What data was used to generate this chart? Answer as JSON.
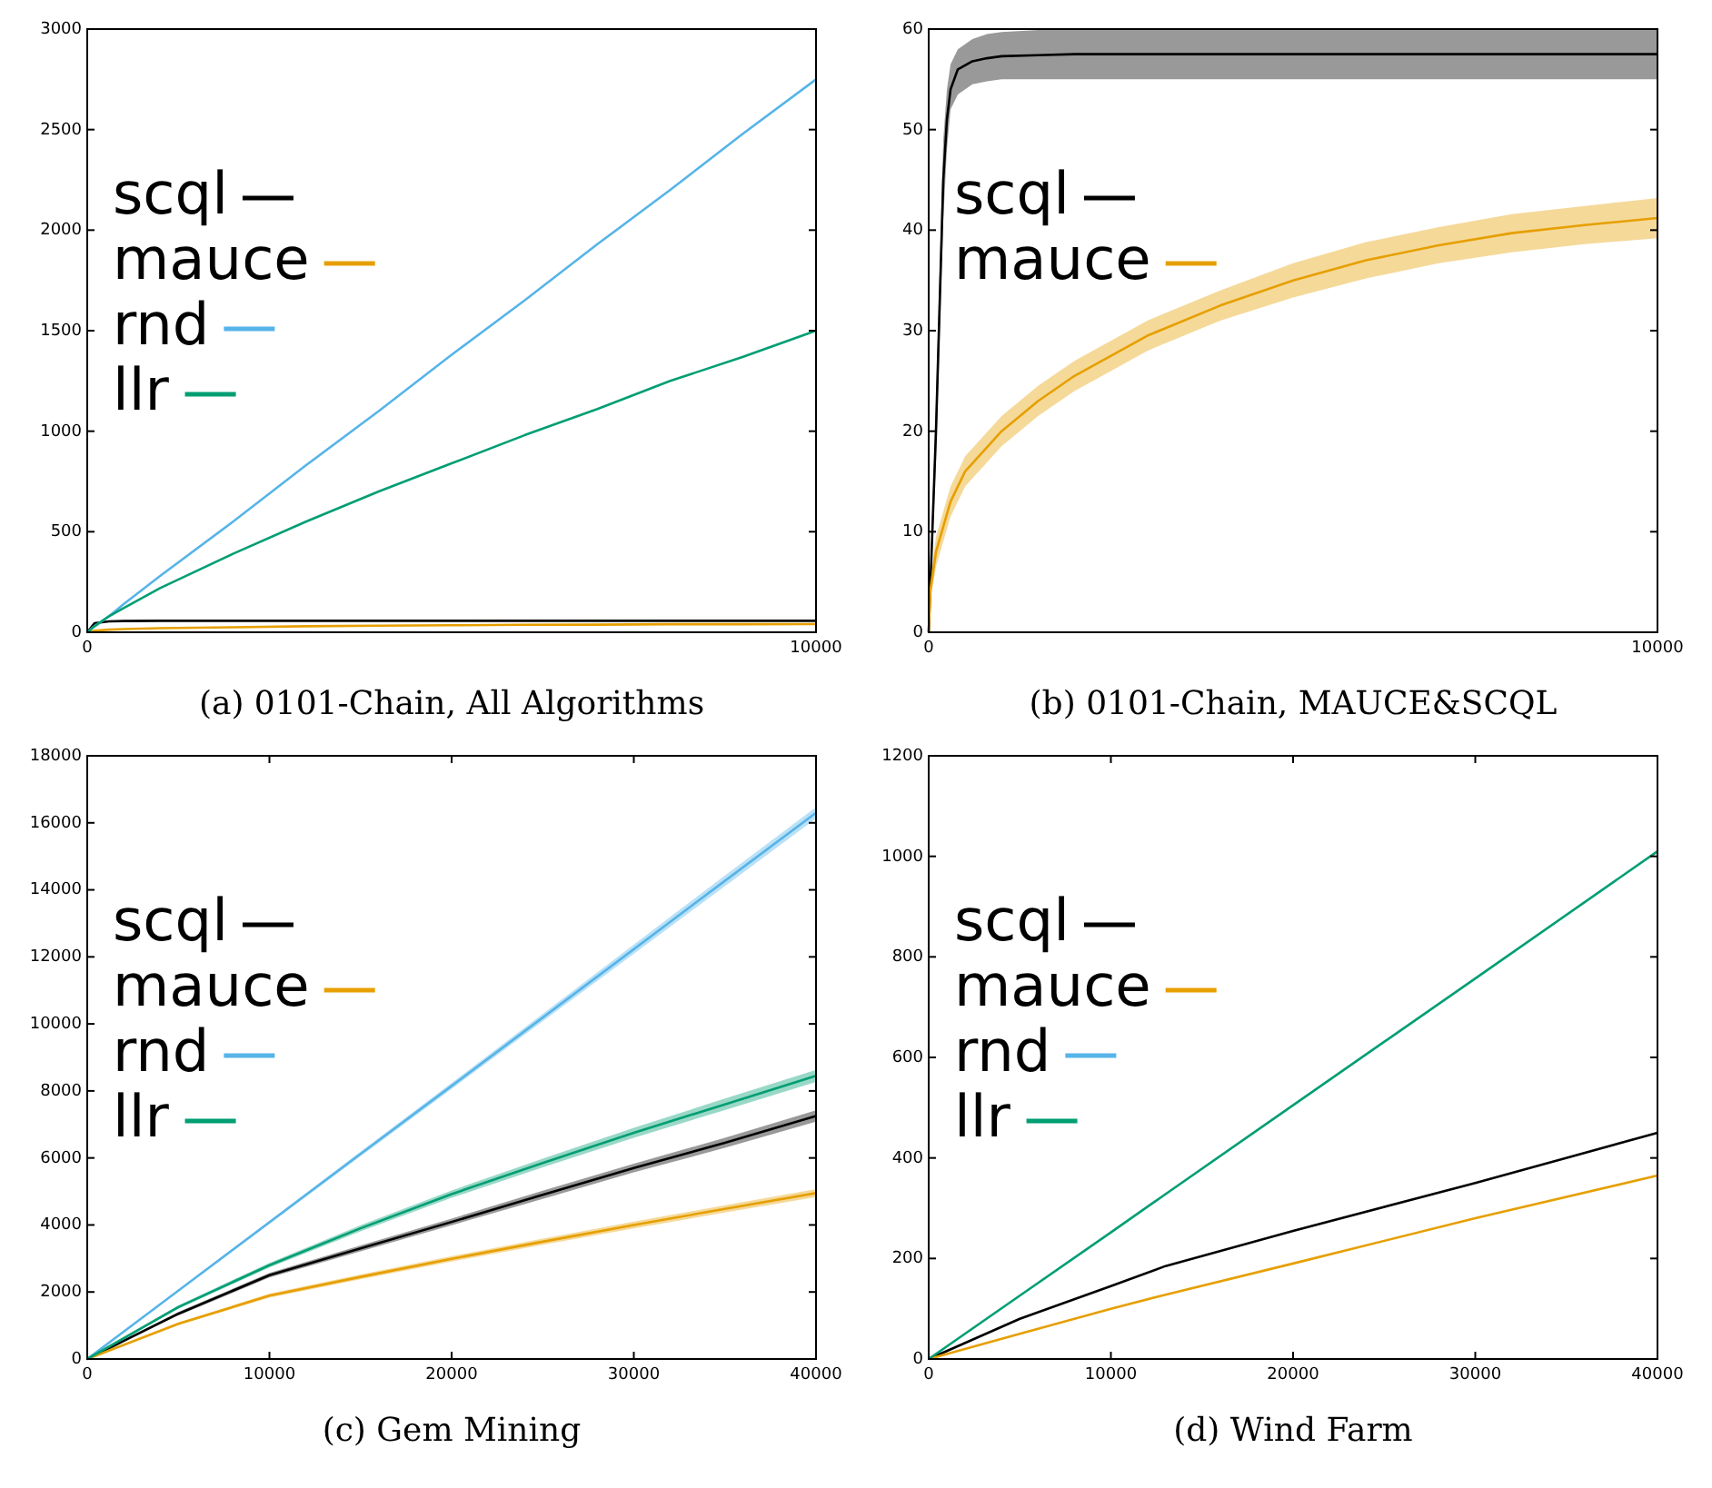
{
  "chart_data": [
    {
      "type": "line",
      "title": "(a) 0101-Chain, All Algorithms",
      "xlim": [
        0,
        10000
      ],
      "xticks": [
        0,
        10000
      ],
      "ylim": [
        0,
        3000
      ],
      "yticks": [
        0,
        500,
        1000,
        1500,
        2000,
        2500,
        3000
      ],
      "legend": "left",
      "grid": false,
      "x": [
        0,
        100,
        300,
        500,
        1000,
        2000,
        3000,
        4000,
        5000,
        6000,
        7000,
        8000,
        9000,
        10000
      ],
      "series": [
        {
          "name": "scql",
          "color": "#000000",
          "values": [
            0,
            45,
            54,
            56,
            57,
            57,
            57,
            57,
            57,
            57,
            57,
            57,
            57,
            57
          ]
        },
        {
          "name": "mauce",
          "color": "#e69f00",
          "values": [
            0,
            8,
            13,
            16,
            20,
            25,
            30,
            33,
            35,
            37,
            38,
            40,
            40,
            41
          ]
        },
        {
          "name": "rnd",
          "color": "#56b4e9",
          "values": [
            0,
            30,
            80,
            140,
            280,
            550,
            830,
            1100,
            1380,
            1650,
            1930,
            2200,
            2480,
            2750
          ]
        },
        {
          "name": "llr",
          "color": "#009e73",
          "values": [
            0,
            30,
            80,
            120,
            220,
            390,
            550,
            700,
            840,
            980,
            1110,
            1250,
            1370,
            1500
          ]
        }
      ]
    },
    {
      "type": "line",
      "title": "(b) 0101-Chain, MAUCE&SCQL",
      "xlim": [
        0,
        10000
      ],
      "xticks": [
        0,
        10000
      ],
      "ylim": [
        0,
        60
      ],
      "yticks": [
        0,
        10,
        20,
        30,
        40,
        50,
        60
      ],
      "legend": "left",
      "grid": false,
      "series": [
        {
          "name": "scql",
          "color": "#000000",
          "x": [
            0,
            100,
            200,
            250,
            300,
            400,
            600,
            800,
            1000,
            1500,
            2000,
            4000,
            10000
          ],
          "values": [
            0,
            20,
            45,
            51,
            54,
            56,
            56.8,
            57.1,
            57.3,
            57.4,
            57.5,
            57.5,
            57.5
          ],
          "lower": [
            0,
            17,
            41,
            48,
            52,
            53.5,
            54.5,
            54.8,
            55,
            55,
            55,
            55,
            55
          ],
          "upper": [
            0,
            23,
            49,
            54,
            56.5,
            58,
            59,
            59.5,
            59.7,
            59.9,
            60,
            60,
            60
          ]
        },
        {
          "name": "mauce",
          "color": "#e69f00",
          "x": [
            0,
            20,
            100,
            300,
            500,
            1000,
            1500,
            2000,
            3000,
            4000,
            5000,
            6000,
            7000,
            8000,
            9000,
            10000
          ],
          "values": [
            0,
            4,
            8,
            13,
            16,
            20,
            23,
            25.5,
            29.5,
            32.5,
            35,
            37,
            38.5,
            39.7,
            40.5,
            41.2
          ],
          "lower": [
            0,
            3,
            6.5,
            11.5,
            14.5,
            18.5,
            21.5,
            24,
            28,
            31,
            33.3,
            35.2,
            36.7,
            37.8,
            38.6,
            39.2
          ],
          "upper": [
            0,
            5,
            9.5,
            14.5,
            17.5,
            21.5,
            24.5,
            27,
            31,
            34,
            36.7,
            38.8,
            40.3,
            41.6,
            42.4,
            43.2
          ]
        }
      ]
    },
    {
      "type": "line",
      "title": "(c) Gem Mining",
      "xlim": [
        0,
        40000
      ],
      "xticks": [
        0,
        10000,
        20000,
        30000,
        40000
      ],
      "ylim": [
        0,
        18000
      ],
      "yticks": [
        0,
        2000,
        4000,
        6000,
        8000,
        10000,
        12000,
        14000,
        16000,
        18000
      ],
      "legend": "left",
      "grid": false,
      "x": [
        0,
        5000,
        10000,
        15000,
        20000,
        25000,
        30000,
        35000,
        40000
      ],
      "series": [
        {
          "name": "scql",
          "color": "#000000",
          "values": [
            0,
            1350,
            2500,
            3300,
            4090,
            4900,
            5700,
            6450,
            7250
          ],
          "lower": [
            0,
            1300,
            2430,
            3210,
            3990,
            4780,
            5570,
            6300,
            7080
          ],
          "upper": [
            0,
            1400,
            2570,
            3390,
            4190,
            5020,
            5830,
            6600,
            7420
          ]
        },
        {
          "name": "mauce",
          "color": "#e69f00",
          "values": [
            0,
            1050,
            1890,
            2450,
            2990,
            3500,
            4000,
            4480,
            4950
          ],
          "lower": [
            0,
            1010,
            1830,
            2380,
            2910,
            3410,
            3900,
            4370,
            4830
          ],
          "upper": [
            0,
            1090,
            1950,
            2520,
            3070,
            3590,
            4100,
            4590,
            5070
          ]
        },
        {
          "name": "rnd",
          "color": "#56b4e9",
          "values": [
            0,
            2040,
            4080,
            6120,
            8150,
            10190,
            12230,
            14270,
            16300
          ],
          "lower": [
            0,
            2010,
            4030,
            6050,
            8060,
            10080,
            12090,
            14110,
            16130
          ],
          "upper": [
            0,
            2070,
            4130,
            6190,
            8240,
            10300,
            12370,
            14430,
            16470
          ]
        },
        {
          "name": "llr",
          "color": "#009e73",
          "values": [
            0,
            1550,
            2800,
            3900,
            4920,
            5850,
            6750,
            7600,
            8450
          ],
          "lower": [
            0,
            1500,
            2730,
            3810,
            4810,
            5720,
            6600,
            7430,
            8270
          ],
          "upper": [
            0,
            1600,
            2870,
            3990,
            5030,
            5980,
            6900,
            7770,
            8630
          ]
        }
      ]
    },
    {
      "type": "line",
      "title": "(d) Wind Farm",
      "xlim": [
        0,
        40000
      ],
      "xticks": [
        0,
        10000,
        20000,
        30000,
        40000
      ],
      "ylim": [
        0,
        1200
      ],
      "yticks": [
        0,
        200,
        400,
        600,
        800,
        1000,
        1200
      ],
      "legend": "left",
      "grid": false,
      "x": [
        0,
        5000,
        10000,
        13000,
        20000,
        30000,
        40000
      ],
      "series": [
        {
          "name": "scql",
          "color": "#000000",
          "values": [
            0,
            80,
            145,
            185,
            255,
            350,
            450
          ]
        },
        {
          "name": "mauce",
          "color": "#e69f00",
          "values": [
            0,
            50,
            100,
            128,
            190,
            280,
            365
          ]
        },
        {
          "name": "rnd",
          "color": "#56b4e9",
          "values": [
            null,
            null,
            null,
            null,
            null,
            null,
            null
          ]
        },
        {
          "name": "llr",
          "color": "#009e73",
          "values": [
            0,
            126,
            252,
            328,
            505,
            757,
            1010
          ]
        }
      ]
    }
  ]
}
